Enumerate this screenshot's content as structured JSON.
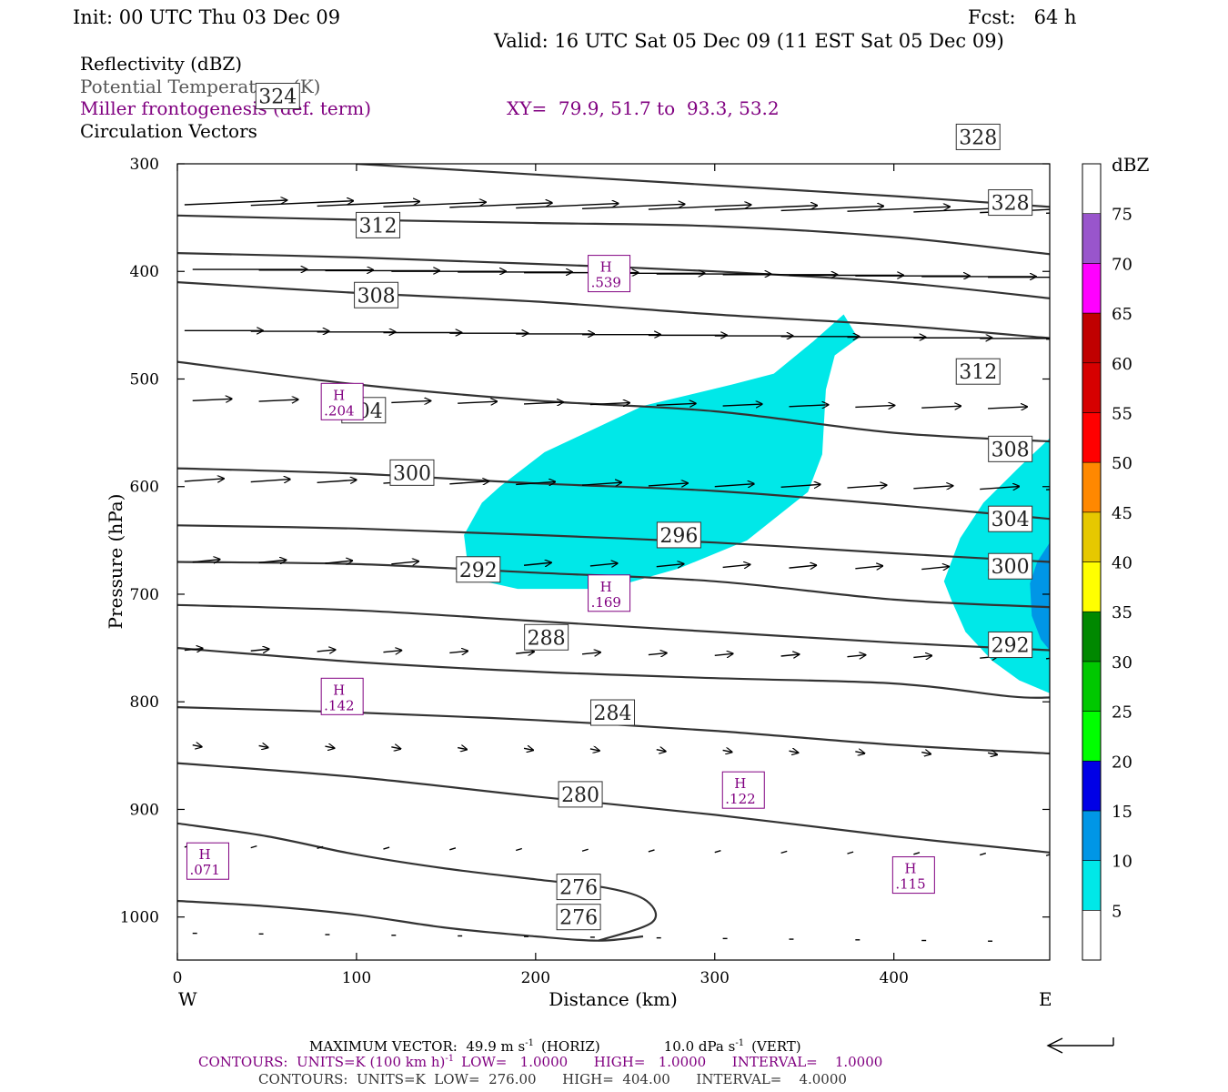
{
  "header": {
    "init": "Init: 00 UTC Thu 03 Dec 09",
    "fcst": "Fcst:   64 h",
    "valid": "Valid: 16 UTC Sat 05 Dec 09 (11 EST Sat 05 Dec 09)",
    "line1": "Reflectivity (dBZ)",
    "line2": "Potential Temperature (K)",
    "line3": "Miller frontogenesis (def. term)",
    "xy": "XY=  79.9, 51.7 to  93.3, 53.2",
    "line4": "Circulation Vectors"
  },
  "footer": {
    "maxvec": "MAXIMUM VECTOR:  49.9 m s",
    "maxvec_horiz": "(HORIZ)",
    "maxvec_vert": "10.0 dPa s",
    "maxvec_vert_tail": "(VERT)",
    "contours1_a": "CONTOURS:  UNITS=K (100 km h)",
    "contours1_b": "LOW=   1.0000      HIGH=   1.0000      INTERVAL=    1.0000",
    "contours2": "CONTOURS:  UNITS=K  LOW=  276.00      HIGH=  404.00      INTERVAL=    4.0000"
  },
  "colors": {
    "theta": "#333333",
    "purple": "#800080",
    "cyan": "#00e8e8",
    "blue10": "#0096e6"
  },
  "chart_data": {
    "type": "contour-cross-section",
    "xlabel": "Distance (km)",
    "ylabel": "Pressure (hPa)",
    "xlim": [
      0,
      487
    ],
    "ylim": [
      300,
      1040
    ],
    "xticks": [
      0,
      100,
      200,
      300,
      400
    ],
    "yticks": [
      300,
      400,
      500,
      600,
      700,
      800,
      900,
      1000
    ],
    "x_end_labels": {
      "left": "W",
      "right": "E"
    },
    "colorbar": {
      "unit": "dBZ",
      "levels": [
        5,
        10,
        15,
        20,
        25,
        30,
        35,
        40,
        45,
        50,
        55,
        60,
        65,
        70,
        75
      ],
      "colors": [
        "#00e8e8",
        "#0096e6",
        "#0000e6",
        "#00ff00",
        "#00c800",
        "#008800",
        "#ffff00",
        "#e6c800",
        "#ff8800",
        "#ff0000",
        "#d60000",
        "#c00000",
        "#ff00ff",
        "#9955cc",
        "#ffffff"
      ]
    },
    "reflectivity_regions": [
      {
        "dbz": 5,
        "points": [
          [
            160,
            645
          ],
          [
            170,
            615
          ],
          [
            180,
            600
          ],
          [
            205,
            568
          ],
          [
            260,
            525
          ],
          [
            310,
            505
          ],
          [
            333,
            495
          ],
          [
            355,
            465
          ],
          [
            372,
            440
          ],
          [
            380,
            462
          ],
          [
            367,
            478
          ],
          [
            362,
            510
          ],
          [
            360,
            570
          ],
          [
            352,
            605
          ],
          [
            318,
            650
          ],
          [
            280,
            676
          ],
          [
            240,
            695
          ],
          [
            190,
            695
          ],
          [
            163,
            685
          ]
        ]
      },
      {
        "dbz": 5,
        "points": [
          [
            487,
            555
          ],
          [
            470,
            582
          ],
          [
            450,
            615
          ],
          [
            437,
            648
          ],
          [
            428,
            688
          ],
          [
            432,
            705
          ],
          [
            440,
            735
          ],
          [
            455,
            762
          ],
          [
            470,
            780
          ],
          [
            487,
            792
          ]
        ]
      },
      {
        "dbz": 10,
        "points": [
          [
            487,
            652
          ],
          [
            480,
            670
          ],
          [
            476,
            690
          ],
          [
            477,
            720
          ],
          [
            482,
            742
          ],
          [
            487,
            752
          ]
        ]
      }
    ],
    "theta_contours": [
      {
        "label": "276",
        "points": [
          [
            0,
            985
          ],
          [
            50,
            990
          ],
          [
            100,
            998
          ],
          [
            150,
            1010
          ],
          [
            200,
            1018
          ],
          [
            235,
            1022
          ],
          [
            260,
            1018
          ]
        ],
        "label_at": [
          224,
          1000
        ]
      },
      {
        "label": "276",
        "points": [
          [
            235,
            1022
          ],
          [
            265,
            1005
          ],
          [
            262,
            985
          ],
          [
            240,
            973
          ],
          [
            200,
            965
          ],
          [
            150,
            955
          ],
          [
            100,
            942
          ],
          [
            50,
            925
          ],
          [
            0,
            913
          ]
        ],
        "label_at": [
          224,
          972
        ]
      },
      {
        "label": "280",
        "points": [
          [
            0,
            857
          ],
          [
            100,
            870
          ],
          [
            200,
            888
          ],
          [
            300,
            905
          ],
          [
            400,
            925
          ],
          [
            487,
            940
          ]
        ],
        "label_at": [
          225,
          886
        ]
      },
      {
        "label": "284",
        "points": [
          [
            0,
            805
          ],
          [
            100,
            810
          ],
          [
            200,
            817
          ],
          [
            300,
            827
          ],
          [
            400,
            840
          ],
          [
            487,
            848
          ]
        ],
        "label_at": [
          243,
          810
        ]
      },
      {
        "label": "288",
        "points": [
          [
            0,
            750
          ],
          [
            100,
            763
          ],
          [
            200,
            772
          ],
          [
            300,
            778
          ],
          [
            400,
            783
          ],
          [
            465,
            795
          ],
          [
            487,
            796
          ]
        ],
        "label_at": [
          206,
          740
        ]
      },
      {
        "label": "292",
        "points": [
          [
            0,
            710
          ],
          [
            100,
            715
          ],
          [
            200,
            725
          ],
          [
            300,
            735
          ],
          [
            400,
            745
          ],
          [
            487,
            752
          ]
        ],
        "label_at": [
          168,
          677
        ]
      },
      {
        "label": "296",
        "points": [
          [
            0,
            670
          ],
          [
            100,
            672
          ],
          [
            200,
            680
          ],
          [
            300,
            688
          ],
          [
            400,
            705
          ],
          [
            487,
            712
          ]
        ],
        "label_at": [
          280,
          645
        ]
      },
      {
        "label": "300",
        "points": [
          [
            0,
            636
          ],
          [
            100,
            639
          ],
          [
            200,
            645
          ],
          [
            300,
            652
          ],
          [
            400,
            662
          ],
          [
            487,
            670
          ]
        ],
        "label_at": [
          131,
          587
        ]
      },
      {
        "label": "304",
        "points": [
          [
            0,
            583
          ],
          [
            100,
            588
          ],
          [
            200,
            597
          ],
          [
            300,
            604
          ],
          [
            400,
            617
          ],
          [
            487,
            630
          ]
        ],
        "label_at": [
          104,
          529
        ]
      },
      {
        "label": "308",
        "points": [
          [
            0,
            484
          ],
          [
            100,
            505
          ],
          [
            200,
            520
          ],
          [
            300,
            530
          ],
          [
            400,
            550
          ],
          [
            487,
            558
          ]
        ],
        "label_at": [
          111,
          422
        ]
      },
      {
        "label": "312",
        "points": [
          [
            0,
            410
          ],
          [
            100,
            420
          ],
          [
            200,
            428
          ],
          [
            300,
            440
          ],
          [
            400,
            450
          ],
          [
            487,
            462
          ]
        ],
        "label_at": [
          112,
          357
        ]
      },
      {
        "label": "324",
        "points": [
          [
            0,
            383
          ],
          [
            100,
            387
          ],
          [
            200,
            393
          ],
          [
            300,
            400
          ],
          [
            400,
            410
          ],
          [
            487,
            425
          ]
        ],
        "label_at": [
          56,
          237
        ]
      },
      {
        "label": "328",
        "points": [
          [
            0,
            348
          ],
          [
            100,
            352
          ],
          [
            200,
            355
          ],
          [
            300,
            358
          ],
          [
            400,
            368
          ],
          [
            487,
            384
          ]
        ],
        "label_at": [
          447,
          275
        ]
      },
      {
        "label": "",
        "points": [
          [
            100,
            300
          ],
          [
            200,
            310
          ],
          [
            300,
            320
          ],
          [
            400,
            330
          ],
          [
            487,
            340
          ]
        ],
        "label_at": null
      }
    ],
    "theta_extra_labels": [
      {
        "label": "328",
        "x": 465,
        "p": 336
      },
      {
        "label": "312",
        "x": 447,
        "p": 493
      },
      {
        "label": "308",
        "x": 465,
        "p": 565
      },
      {
        "label": "304",
        "x": 465,
        "p": 630
      },
      {
        "label": "300",
        "x": 465,
        "p": 674
      },
      {
        "label": "292",
        "x": 465,
        "p": 747
      }
    ],
    "frontogenesis_highs": [
      {
        "label": "H",
        "value": ".539",
        "x": 241,
        "p": 402
      },
      {
        "label": "H",
        "value": ".204",
        "x": 92,
        "p": 521
      },
      {
        "label": "H",
        "value": ".169",
        "x": 241,
        "p": 699
      },
      {
        "label": "H",
        "value": ".142",
        "x": 92,
        "p": 795
      },
      {
        "label": "H",
        "value": ".122",
        "x": 316,
        "p": 882
      },
      {
        "label": "H",
        "value": ".071",
        "x": 17,
        "p": 948
      },
      {
        "label": "H",
        "value": ".115",
        "x": 411,
        "p": 961
      }
    ],
    "vector_rows": [
      {
        "p": 338,
        "u": 34,
        "w": 0.5
      },
      {
        "p": 398,
        "u": 38,
        "w": 0.0
      },
      {
        "p": 455,
        "u": 26,
        "w": 0.0
      },
      {
        "p": 520,
        "u": 13,
        "w": 0.2
      },
      {
        "p": 595,
        "u": 13,
        "w": 0.3
      },
      {
        "p": 670,
        "u": 9,
        "w": 0.3
      },
      {
        "p": 752,
        "u": 6,
        "w": 0.2
      },
      {
        "p": 840,
        "u": 3,
        "w": -0.2
      },
      {
        "p": 935,
        "u": 2,
        "w": 0.2
      },
      {
        "p": 1015,
        "u": 1.5,
        "w": 0.0
      }
    ],
    "vector_scale_px": 49.9
  }
}
